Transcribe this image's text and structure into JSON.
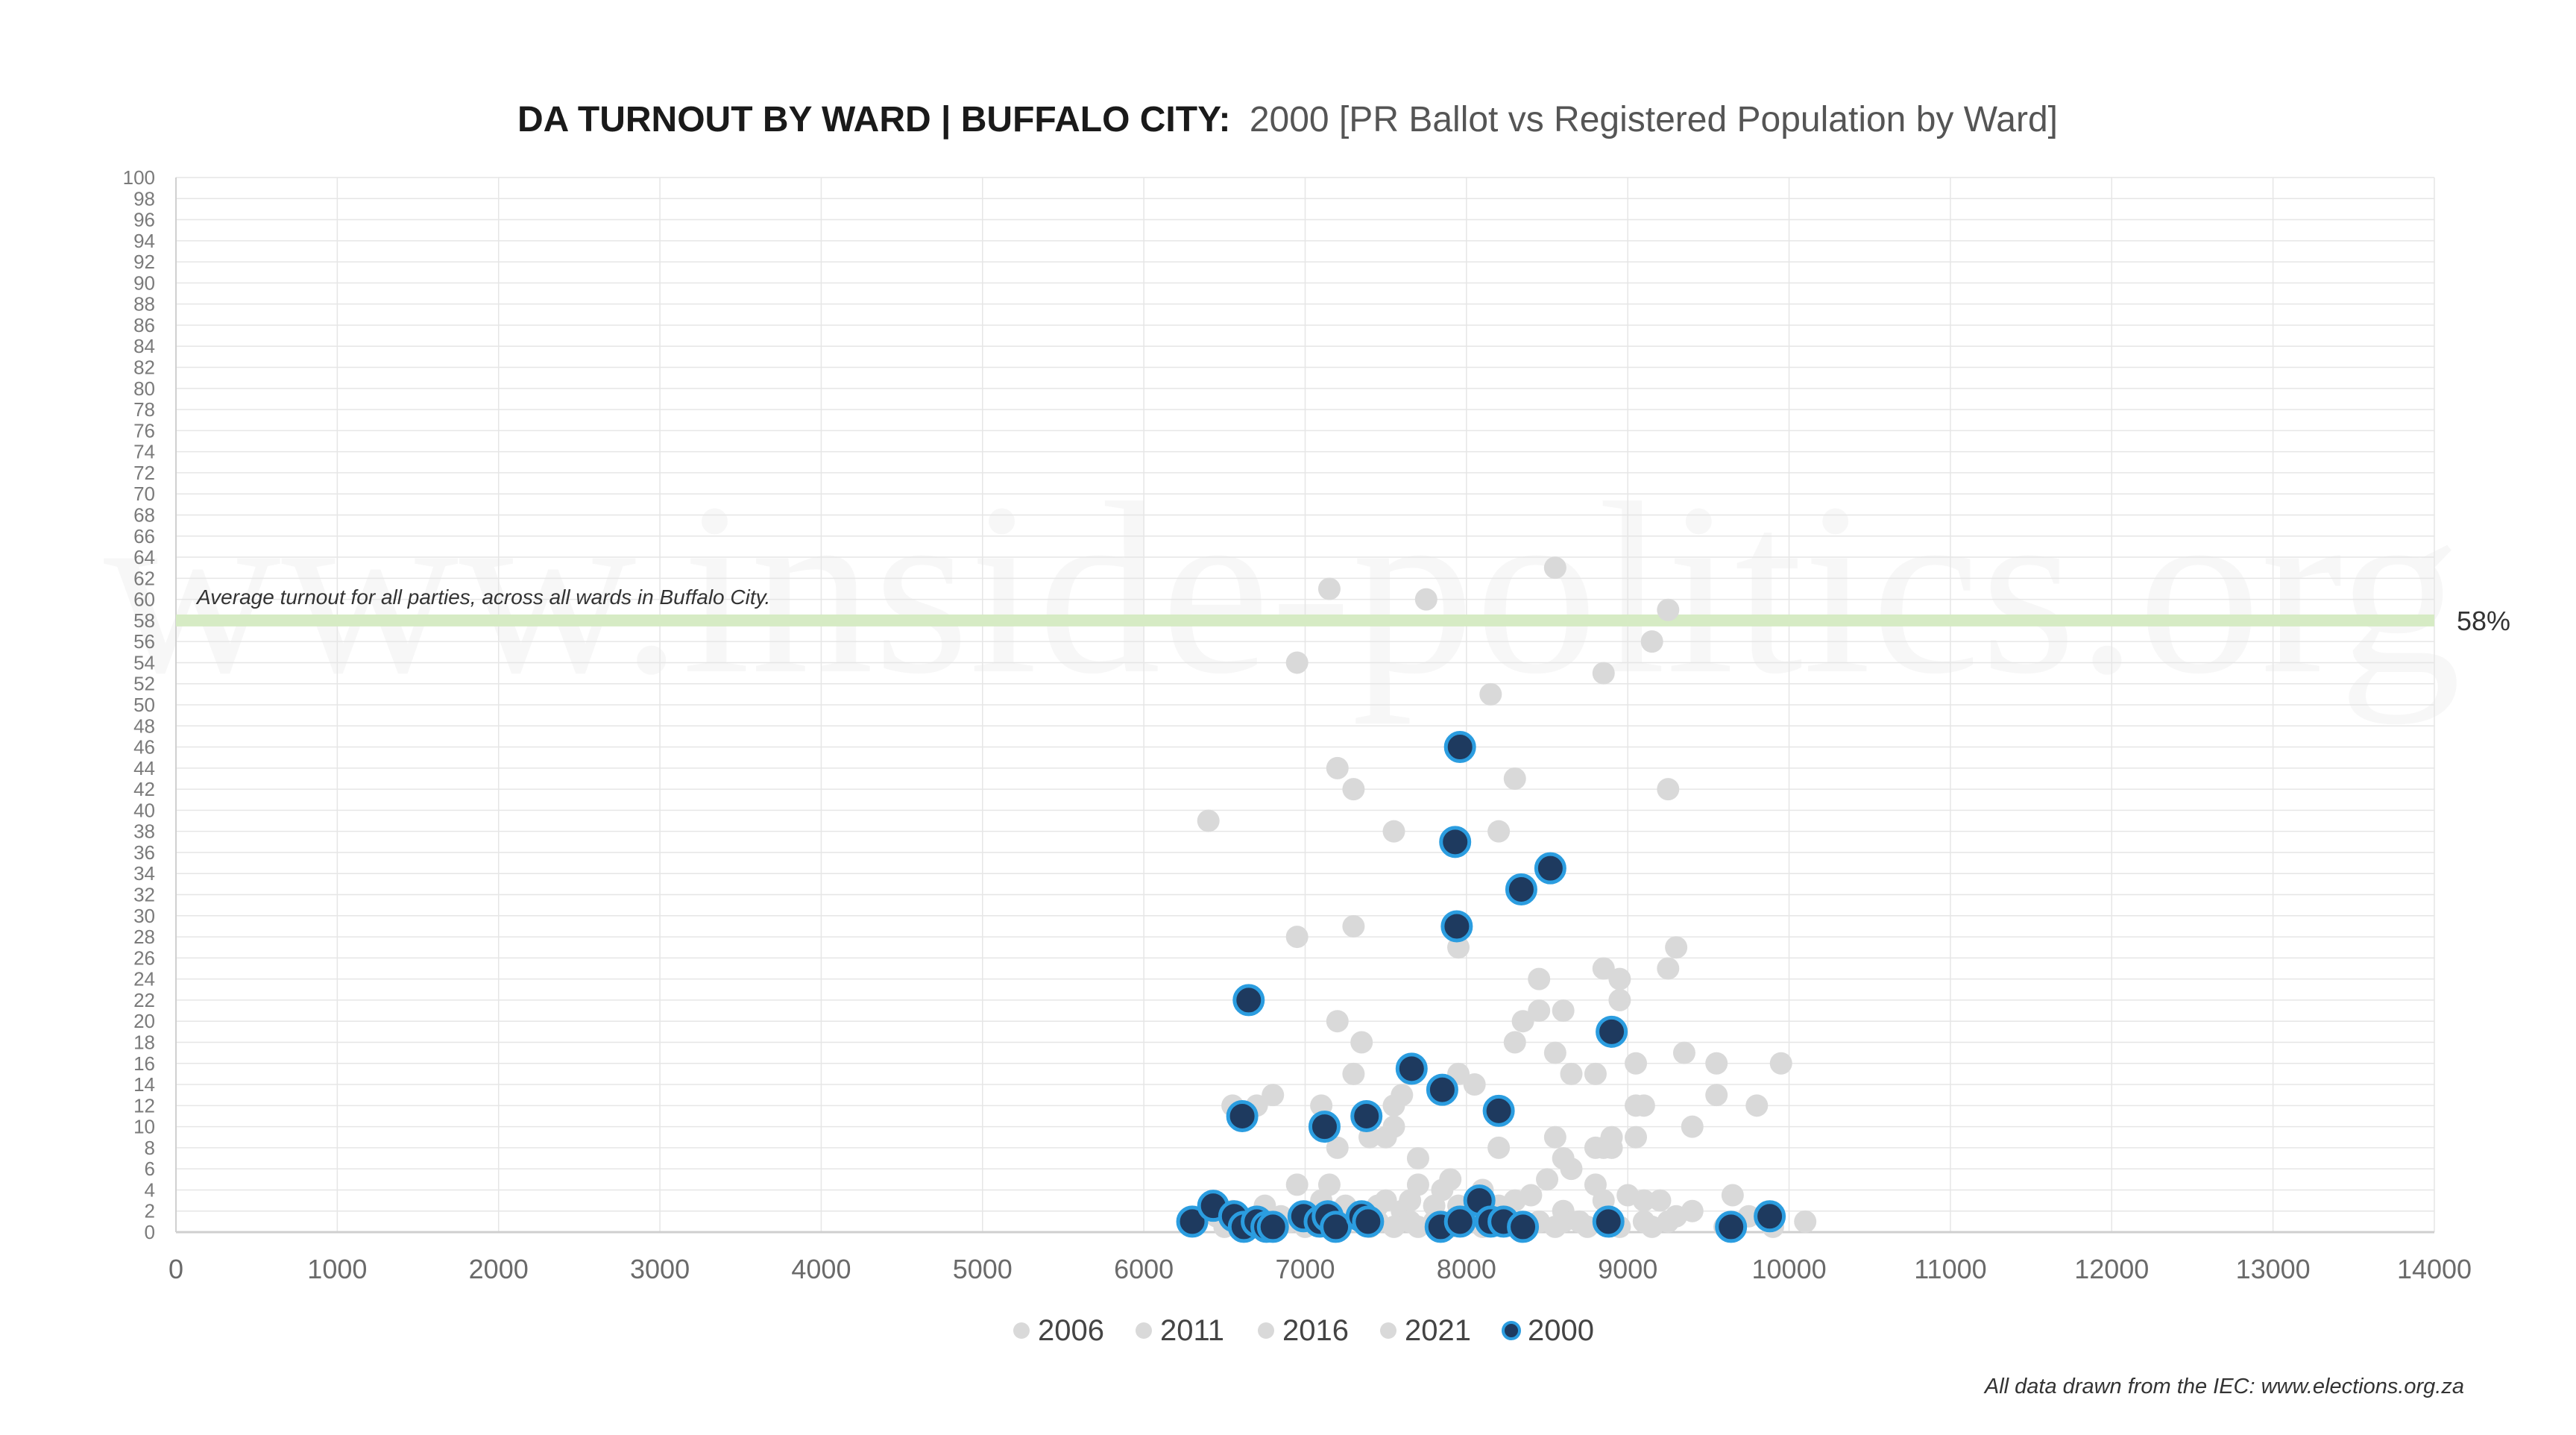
{
  "chart_data": {
    "type": "scatter",
    "title": "DA TURNOUT BY WARD | BUFFALO CITY:",
    "subtitle": "2000 [PR Ballot vs Registered Population by Ward]",
    "xlabel": "",
    "ylabel": "",
    "xlim": [
      0,
      14000
    ],
    "ylim": [
      0,
      100
    ],
    "x_ticks": [
      0,
      1000,
      2000,
      3000,
      4000,
      5000,
      6000,
      7000,
      8000,
      9000,
      10000,
      11000,
      12000,
      13000,
      14000
    ],
    "y_ticks": [
      0,
      2,
      4,
      6,
      8,
      10,
      12,
      14,
      16,
      18,
      20,
      22,
      24,
      26,
      28,
      30,
      32,
      34,
      36,
      38,
      40,
      42,
      44,
      46,
      48,
      50,
      52,
      54,
      56,
      58,
      60,
      62,
      64,
      66,
      68,
      70,
      72,
      74,
      76,
      78,
      80,
      82,
      84,
      86,
      88,
      90,
      92,
      94,
      96,
      98,
      100
    ],
    "grid": true,
    "legend_position": "bottom",
    "reference_line": {
      "value": 58,
      "label": "58%",
      "annotation": "Average turnout for all parties, across all wards in Buffalo City.",
      "color": "#d6ebc4"
    },
    "watermark": "www.inside-politics.org",
    "footnote": "All data drawn from the IEC: www.elections.org.za",
    "series": [
      {
        "name": "2006",
        "color": "#d9d9d9",
        "points": [
          [
            6400,
            39
          ],
          [
            6950,
            54
          ],
          [
            7150,
            61
          ],
          [
            7750,
            60
          ],
          [
            8150,
            51
          ],
          [
            8550,
            63
          ],
          [
            8850,
            53
          ],
          [
            9150,
            56
          ],
          [
            9250,
            59
          ],
          [
            9250,
            42
          ],
          [
            7200,
            44
          ],
          [
            7300,
            42
          ],
          [
            7550,
            38
          ],
          [
            7300,
            29
          ],
          [
            6950,
            28
          ],
          [
            7950,
            27
          ],
          [
            8200,
            38
          ],
          [
            8300,
            43
          ],
          [
            8450,
            24
          ],
          [
            8850,
            25
          ],
          [
            8950,
            24
          ],
          [
            9250,
            25
          ],
          [
            9300,
            27
          ],
          [
            9350,
            17
          ],
          [
            9550,
            16
          ],
          [
            9950,
            16
          ],
          [
            9800,
            12
          ],
          [
            9550,
            13
          ]
        ]
      },
      {
        "name": "2011",
        "color": "#d9d9d9",
        "points": [
          [
            7200,
            20
          ],
          [
            7350,
            18
          ],
          [
            7300,
            15
          ],
          [
            7600,
            13
          ],
          [
            7650,
            15
          ],
          [
            7550,
            12
          ],
          [
            7950,
            15
          ],
          [
            8050,
            14
          ],
          [
            8300,
            18
          ],
          [
            8350,
            20
          ],
          [
            8450,
            21
          ],
          [
            8550,
            17
          ],
          [
            8600,
            21
          ],
          [
            8650,
            15
          ],
          [
            8800,
            15
          ],
          [
            8950,
            22
          ],
          [
            9050,
            16
          ],
          [
            9050,
            12
          ],
          [
            9100,
            12
          ],
          [
            9050,
            9
          ],
          [
            9400,
            10
          ],
          [
            8900,
            9
          ],
          [
            8900,
            8
          ],
          [
            8850,
            8
          ],
          [
            8800,
            8
          ],
          [
            8550,
            9
          ],
          [
            8600,
            7
          ],
          [
            8650,
            6
          ],
          [
            8200,
            8
          ],
          [
            7550,
            10
          ],
          [
            7700,
            7
          ],
          [
            7500,
            9
          ],
          [
            7400,
            9
          ],
          [
            7200,
            8
          ],
          [
            7100,
            12
          ],
          [
            6800,
            13
          ],
          [
            6700,
            12
          ],
          [
            6550,
            12
          ]
        ]
      },
      {
        "name": "2016",
        "color": "#d9d9d9",
        "points": [
          [
            6450,
            1.5
          ],
          [
            6550,
            2
          ],
          [
            6650,
            1
          ],
          [
            6750,
            2.5
          ],
          [
            6850,
            1.5
          ],
          [
            6950,
            4.5
          ],
          [
            7100,
            3
          ],
          [
            7150,
            4.5
          ],
          [
            7250,
            2.5
          ],
          [
            7350,
            1.5
          ],
          [
            7450,
            2.5
          ],
          [
            7500,
            3
          ],
          [
            7600,
            2
          ],
          [
            7650,
            3
          ],
          [
            7700,
            4.5
          ],
          [
            7800,
            2.5
          ],
          [
            7850,
            4
          ],
          [
            7900,
            5
          ],
          [
            7950,
            2.5
          ],
          [
            8100,
            4
          ],
          [
            8200,
            2.5
          ],
          [
            8300,
            3
          ],
          [
            8400,
            3.5
          ],
          [
            8500,
            5
          ],
          [
            8600,
            2
          ],
          [
            8700,
            1
          ],
          [
            8800,
            4.5
          ],
          [
            8850,
            3
          ],
          [
            9000,
            3.5
          ],
          [
            9100,
            3
          ],
          [
            9200,
            3
          ],
          [
            9300,
            1.5
          ],
          [
            9400,
            2
          ],
          [
            9650,
            3.5
          ],
          [
            9750,
            1.5
          ],
          [
            10100,
            1
          ]
        ]
      },
      {
        "name": "2021",
        "color": "#d9d9d9",
        "points": [
          [
            6500,
            0.5
          ],
          [
            6650,
            1
          ],
          [
            6800,
            0.5
          ],
          [
            6900,
            1
          ],
          [
            7000,
            0.5
          ],
          [
            7050,
            1
          ],
          [
            7150,
            0.5
          ],
          [
            7250,
            1
          ],
          [
            7400,
            0.5
          ],
          [
            7450,
            1
          ],
          [
            7550,
            0.5
          ],
          [
            7650,
            1
          ],
          [
            7700,
            0.5
          ],
          [
            7800,
            1
          ],
          [
            7900,
            0.5
          ],
          [
            8000,
            1
          ],
          [
            8100,
            0.5
          ],
          [
            8200,
            1
          ],
          [
            8350,
            0.5
          ],
          [
            8450,
            1
          ],
          [
            8550,
            0.5
          ],
          [
            8600,
            1
          ],
          [
            8750,
            0.5
          ],
          [
            8950,
            0.5
          ],
          [
            9100,
            1
          ],
          [
            9150,
            0.5
          ],
          [
            9250,
            1
          ],
          [
            9600,
            0.5
          ],
          [
            9900,
            0.5
          ]
        ]
      },
      {
        "name": "2000",
        "color": "#1e3a5f",
        "stroke": "#2b9de0",
        "points": [
          [
            7960,
            46
          ],
          [
            7930,
            37
          ],
          [
            8520,
            34.5
          ],
          [
            8340,
            32.5
          ],
          [
            7940,
            29
          ],
          [
            6650,
            22
          ],
          [
            8900,
            19
          ],
          [
            7660,
            15.5
          ],
          [
            7850,
            13.5
          ],
          [
            8200,
            11.5
          ],
          [
            6610,
            11
          ],
          [
            7380,
            11
          ],
          [
            7120,
            10
          ],
          [
            6300,
            1
          ],
          [
            6430,
            2.5
          ],
          [
            6560,
            1.5
          ],
          [
            6620,
            0.5
          ],
          [
            6700,
            1
          ],
          [
            6760,
            0.5
          ],
          [
            6800,
            0.5
          ],
          [
            6990,
            1.5
          ],
          [
            7090,
            1
          ],
          [
            7140,
            1.5
          ],
          [
            7190,
            0.5
          ],
          [
            7350,
            1.5
          ],
          [
            7390,
            1
          ],
          [
            7840,
            0.5
          ],
          [
            7960,
            1
          ],
          [
            8080,
            3
          ],
          [
            8150,
            1
          ],
          [
            8230,
            1
          ],
          [
            8350,
            0.5
          ],
          [
            8880,
            1
          ],
          [
            9640,
            0.5
          ],
          [
            9880,
            1.5
          ]
        ]
      }
    ]
  }
}
